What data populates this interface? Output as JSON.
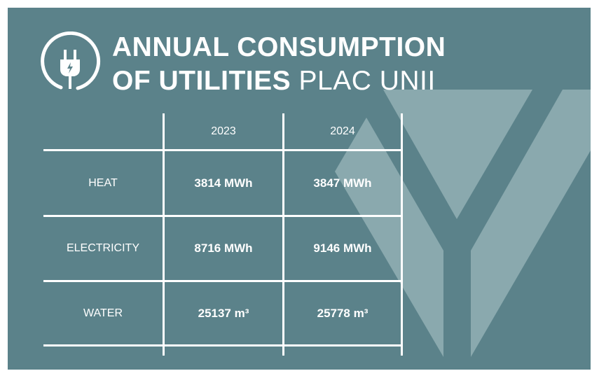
{
  "colors": {
    "background": "#5b828a",
    "logo_shape": "#8aa9ae",
    "text": "#ffffff"
  },
  "icon": "plug-icon",
  "title": {
    "line1": "ANNUAL CONSUMPTION",
    "line2_bold": "OF UTILITIES",
    "line2_light": "PLAC UNII"
  },
  "table": {
    "columns": [
      "",
      "2023",
      "2024"
    ],
    "rows": [
      {
        "label": "HEAT",
        "v2023": "3814 MWh",
        "v2024": "3847 MWh"
      },
      {
        "label": "ELECTRICITY",
        "v2023": "8716 MWh",
        "v2024": "9146 MWh"
      },
      {
        "label": "WATER",
        "v2023": "25137 m³",
        "v2024": "25778 m³"
      }
    ]
  }
}
